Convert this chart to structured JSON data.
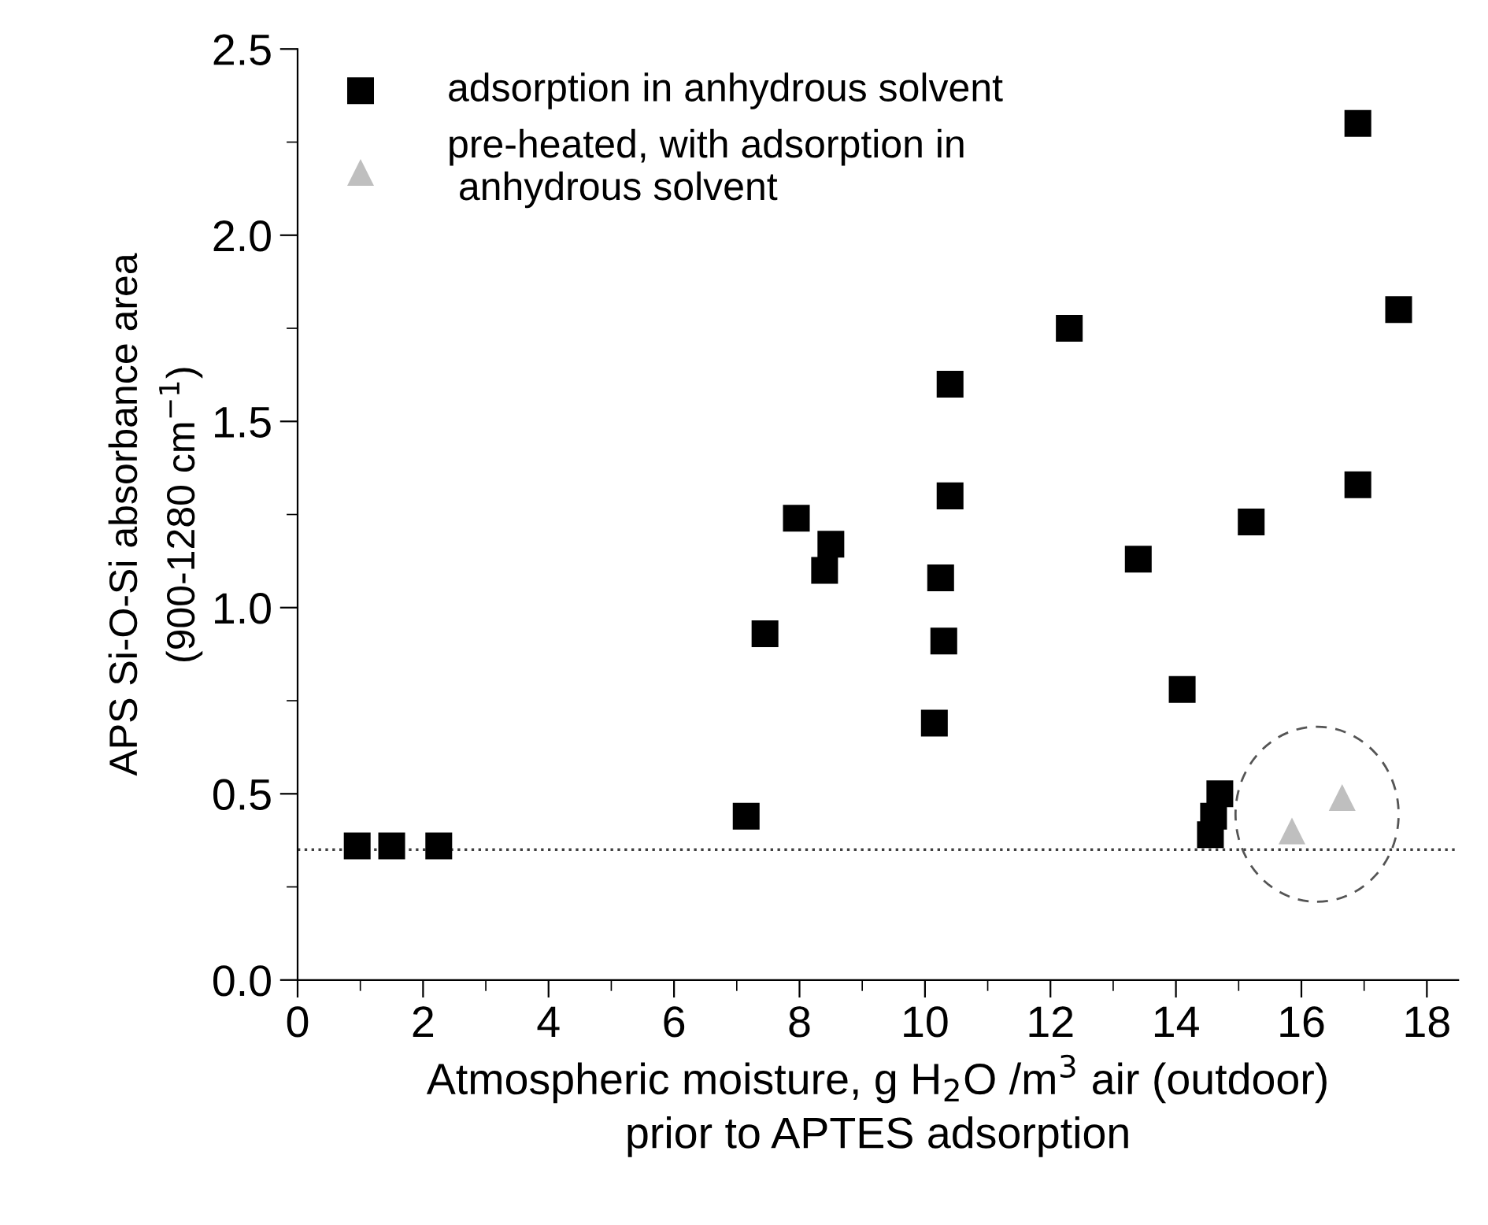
{
  "chart_data": {
    "type": "scatter",
    "xlabel": "Atmospheric moisture, g H$_{2}$O /m$^{3}$ air (outdoor)\nprior to APTES adsorption",
    "ylabel": "APS Si-O-Si absorbance area\n(900-1280 cm$^{−1}$)",
    "series": [
      {
        "name": "adsorption in anhydrous solvent",
        "color": "#000000",
        "marker": "square",
        "x": [
          0.95,
          1.5,
          2.25,
          7.15,
          7.45,
          7.95,
          8.5,
          8.4,
          16.9,
          17.55,
          12.3,
          10.4,
          10.4,
          16.9,
          15.2,
          13.4,
          10.25,
          10.3,
          10.15,
          14.1,
          14.7,
          14.6,
          14.55
        ],
        "values": [
          0.36,
          0.36,
          0.36,
          0.44,
          0.93,
          1.24,
          1.17,
          1.1,
          2.3,
          1.8,
          1.75,
          1.6,
          1.3,
          1.33,
          1.23,
          1.13,
          1.08,
          0.91,
          0.69,
          0.78,
          0.5,
          0.44,
          0.39
        ]
      },
      {
        "name": "pre-heated, with adsorption in\n anhydrous solvent",
        "color": "#bfbfbf",
        "marker": "triangle",
        "x": [
          15.85,
          16.65
        ],
        "values": [
          0.4,
          0.49
        ]
      }
    ],
    "xlim": [
      0,
      18.5
    ],
    "xticks": [
      0,
      2,
      4,
      6,
      8,
      10,
      12,
      14,
      16,
      18
    ],
    "ylim": [
      0,
      2.5
    ],
    "yticks": [
      {
        "value": 0,
        "label": "0.0"
      },
      {
        "value": 0.5,
        "label": "0.5"
      },
      {
        "value": 1,
        "label": "1.0"
      },
      {
        "value": 1.5,
        "label": "1.5"
      },
      {
        "value": 2,
        "label": "2.0"
      },
      {
        "value": 2.5,
        "label": "2.5"
      }
    ],
    "ref_lines": [
      {
        "axis": "y",
        "value": 0.35,
        "color": "#404040",
        "line_style": "dotted"
      }
    ],
    "grid": false,
    "legend": "top left"
  }
}
